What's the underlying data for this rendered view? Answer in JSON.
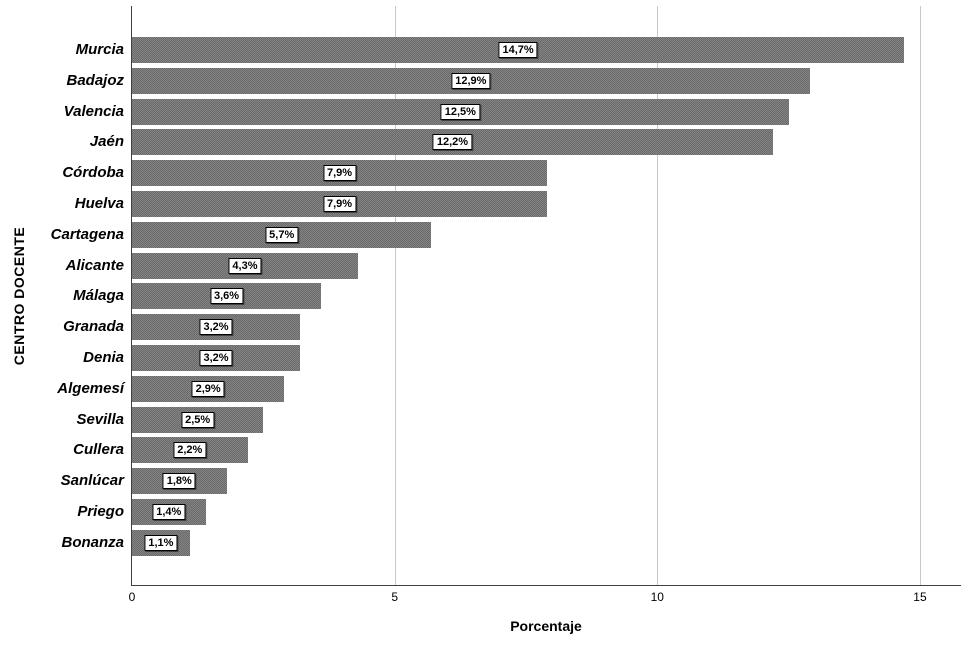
{
  "figure": {
    "background": "#ffffff"
  },
  "chart_data": {
    "type": "bar",
    "orientation": "horizontal",
    "title": "",
    "xlabel": "Porcentaje",
    "ylabel": "CENTRO DOCENTE",
    "categories": [
      "Murcia",
      "Badajoz",
      "Valencia",
      "Jaén",
      "Córdoba",
      "Huelva",
      "Cartagena",
      "Alicante",
      "Málaga",
      "Granada",
      "Denia",
      "Algemesí",
      "Sevilla",
      "Cullera",
      "Sanlúcar",
      "Priego",
      "Bonanza"
    ],
    "values": [
      14.7,
      12.9,
      12.5,
      12.2,
      7.9,
      7.9,
      5.7,
      4.3,
      3.6,
      3.2,
      3.2,
      2.9,
      2.5,
      2.2,
      1.8,
      1.4,
      1.1
    ],
    "value_labels": [
      "14,7%",
      "12,9%",
      "12,5%",
      "12,2%",
      "7,9%",
      "7,9%",
      "5,7%",
      "4,3%",
      "3,6%",
      "3,2%",
      "3,2%",
      "2,9%",
      "2,5%",
      "2,2%",
      "1,8%",
      "1,4%",
      "1,1%"
    ],
    "xlim": [
      0,
      15.8
    ],
    "xticks": [
      0,
      5,
      10,
      15
    ],
    "grid": "vertical-at-xticks",
    "legend": "none",
    "value_label_style": "boxed-centered-in-bar",
    "colors": {
      "background": "#ffffff",
      "bar_fill": "#777777",
      "bar_fill_light": "#848484",
      "bar_fill_dark": "#6a6a6a",
      "gridline": "#c8c8c8",
      "axis_line": "#404040",
      "value_box_bg": "#ffffff",
      "value_box_border": "#000000",
      "text": "#000000"
    }
  }
}
